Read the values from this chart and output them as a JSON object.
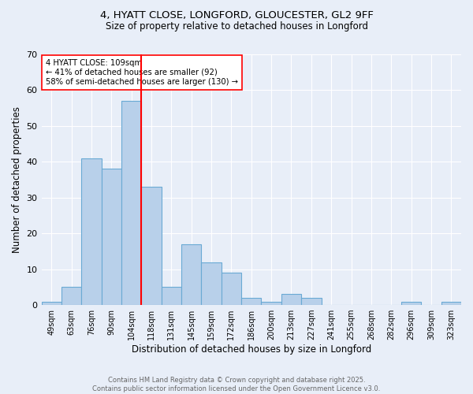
{
  "title_line1": "4, HYATT CLOSE, LONGFORD, GLOUCESTER, GL2 9FF",
  "title_line2": "Size of property relative to detached houses in Longford",
  "xlabel": "Distribution of detached houses by size in Longford",
  "ylabel": "Number of detached properties",
  "bar_labels": [
    "49sqm",
    "63sqm",
    "76sqm",
    "90sqm",
    "104sqm",
    "118sqm",
    "131sqm",
    "145sqm",
    "159sqm",
    "172sqm",
    "186sqm",
    "200sqm",
    "213sqm",
    "227sqm",
    "241sqm",
    "255sqm",
    "268sqm",
    "282sqm",
    "296sqm",
    "309sqm",
    "323sqm"
  ],
  "bar_values": [
    1,
    5,
    41,
    38,
    57,
    33,
    5,
    17,
    12,
    9,
    2,
    1,
    3,
    2,
    0,
    0,
    0,
    0,
    1,
    0,
    1
  ],
  "bar_color": "#b8d0ea",
  "bar_edge_color": "#6aaad4",
  "red_line_bin_index": 4.5,
  "annotation_text": "4 HYATT CLOSE: 109sqm\n← 41% of detached houses are smaller (92)\n58% of semi-detached houses are larger (130) →",
  "ylim": [
    0,
    70
  ],
  "yticks": [
    0,
    10,
    20,
    30,
    40,
    50,
    60,
    70
  ],
  "footer_line1": "Contains HM Land Registry data © Crown copyright and database right 2025.",
  "footer_line2": "Contains public sector information licensed under the Open Government Licence v3.0.",
  "background_color": "#e8eef8"
}
